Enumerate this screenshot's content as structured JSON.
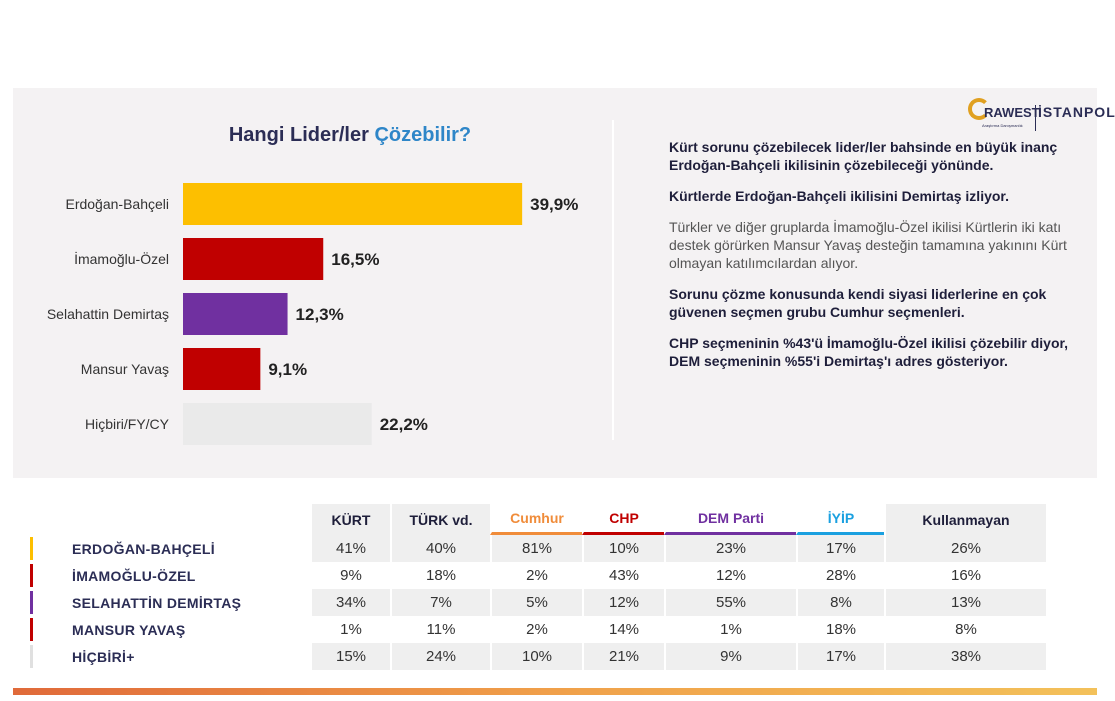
{
  "chart_data": {
    "type": "bar",
    "orientation": "horizontal",
    "title_main": "Hangi Lider/ler ",
    "title_accent": "Çözebilir?",
    "categories": [
      "Erdoğan-Bahçeli",
      "İmamoğlu-Özel",
      "Selahattin Demirtaş",
      "Mansur Yavaş",
      "Hiçbiri/FY/CY"
    ],
    "values": [
      39.9,
      16.5,
      12.3,
      9.1,
      22.2
    ],
    "value_labels": [
      "39,9%",
      "16,5%",
      "12,3%",
      "9,1%",
      "22,2%"
    ],
    "colors": [
      "#fdbf00",
      "#c00000",
      "#7030a0",
      "#c00000",
      "#eaeaea"
    ],
    "xlim": [
      0,
      50
    ],
    "grid": false,
    "legend": "none"
  },
  "logo": {
    "brand": "RAWEST",
    "city": "İSTANPOL",
    "tagline": "Araştırma Danışmanlık"
  },
  "paragraphs": [
    {
      "style": "bold",
      "text": "Kürt sorunu çözebilecek lider/ler bahsinde en büyük inanç Erdoğan-Bahçeli ikilisinin çözebileceği yönünde."
    },
    {
      "style": "bold",
      "text": "Kürtlerde Erdoğan-Bahçeli ikilisini Demirtaş izliyor."
    },
    {
      "style": "normal",
      "text": "Türkler ve diğer gruplarda İmamoğlu-Özel ikilisi Kürtlerin iki katı destek görürken Mansur Yavaş desteğin tamamına yakınını Kürt olmayan katılımcılardan alıyor."
    },
    {
      "style": "bold",
      "text": "Sorunu çözme konusunda kendi siyasi liderlerine en çok güvenen seçmen grubu Cumhur seçmenleri."
    },
    {
      "style": "bold",
      "text": "CHP seçmeninin %43'ü İmamoğlu-Özel ikilisi çözebilir diyor, DEM seçmeninin %55'i Demirtaş'ı adres gösteriyor."
    }
  ],
  "table": {
    "columns": [
      {
        "label": "KÜRT",
        "color": "#1e1e3a",
        "underline": ""
      },
      {
        "label": "TÜRK vd.",
        "color": "#1e1e3a",
        "underline": ""
      },
      {
        "label": "Cumhur",
        "color": "#f08c3a",
        "underline": "#f08c3a"
      },
      {
        "label": "CHP",
        "color": "#c00000",
        "underline": "#c00000"
      },
      {
        "label": "DEM Parti",
        "color": "#7030a0",
        "underline": "#7030a0"
      },
      {
        "label": "İYİP",
        "color": "#1aa0e0",
        "underline": "#1aa0e0"
      },
      {
        "label": "Kullanmayan",
        "color": "#1e1e3a",
        "underline": ""
      }
    ],
    "rows": [
      {
        "label": "ERDOĞAN-BAHÇELİ",
        "marker": "#fdbf00",
        "values": [
          "41%",
          "40%",
          "81%",
          "10%",
          "23%",
          "17%",
          "26%"
        ]
      },
      {
        "label": "İMAMOĞLU-ÖZEL",
        "marker": "#c00000",
        "values": [
          "9%",
          "18%",
          "2%",
          "43%",
          "12%",
          "28%",
          "16%"
        ]
      },
      {
        "label": "SELAHATTİN DEMİRTAŞ",
        "marker": "#7030a0",
        "values": [
          "34%",
          "7%",
          "5%",
          "12%",
          "55%",
          "8%",
          "13%"
        ]
      },
      {
        "label": "MANSUR YAVAŞ",
        "marker": "#c00000",
        "values": [
          "1%",
          "11%",
          "2%",
          "14%",
          "1%",
          "18%",
          "8%"
        ]
      },
      {
        "label": "HİÇBİRİ+",
        "marker": "#e0e0e0",
        "values": [
          "15%",
          "24%",
          "10%",
          "21%",
          "9%",
          "17%",
          "38%"
        ]
      }
    ]
  }
}
